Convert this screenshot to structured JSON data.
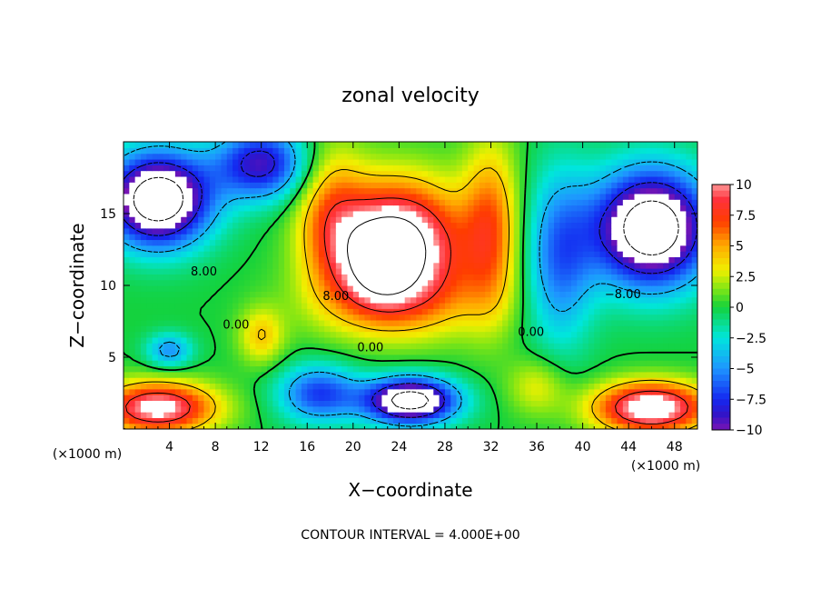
{
  "chart_data": {
    "type": "heatmap",
    "title": "zonal velocity",
    "xlabel": "X−coordinate",
    "ylabel": "Z−coordinate",
    "x_unit_left": "(×1000 m)",
    "x_unit_right": "(×1000 m)",
    "footer": "CONTOUR INTERVAL = 4.000E+00",
    "xlim": [
      0,
      50
    ],
    "ylim": [
      0,
      20
    ],
    "x_ticks": [
      4,
      8,
      12,
      16,
      20,
      24,
      28,
      32,
      36,
      40,
      44,
      48
    ],
    "x_tick_labels": [
      "4",
      "8",
      "12",
      "16",
      "20",
      "24",
      "28",
      "32",
      "36",
      "40",
      "44",
      "48"
    ],
    "y_ticks": [
      5,
      10,
      15
    ],
    "y_tick_labels": [
      "5",
      "10",
      "15"
    ],
    "colorbar": {
      "range": [
        -10,
        10
      ],
      "ticks": [
        10,
        7.5,
        5,
        2.5,
        0,
        -2.5,
        -5,
        -7.5,
        -10
      ],
      "tick_labels": [
        "10",
        "7.5",
        "5",
        "2.5",
        "0",
        "−2.5",
        "−5",
        "−7.5",
        "−10"
      ]
    },
    "contour_interval": 4,
    "contour_labels": [
      {
        "text": "8.00",
        "x": 7.0,
        "y": 10.7
      },
      {
        "text": "8.00",
        "x": 18.5,
        "y": 9.0
      },
      {
        "text": "0.00",
        "x": 9.8,
        "y": 7.0
      },
      {
        "text": "0.00",
        "x": 21.5,
        "y": 5.4
      },
      {
        "text": "0.00",
        "x": 35.5,
        "y": 6.5
      },
      {
        "text": "−8.00",
        "x": 43.5,
        "y": 9.1
      }
    ],
    "centers": [
      {
        "x": 24,
        "y": 13,
        "v": 13,
        "sx": 5.5,
        "sy": 4.2
      },
      {
        "x": 22,
        "y": 11.5,
        "v": 4,
        "sx": 3,
        "sy": 3
      },
      {
        "x": 32,
        "y": 14,
        "v": 6,
        "sx": 2.5,
        "sy": 6
      },
      {
        "x": 18,
        "y": 15,
        "v": 5,
        "sx": 3,
        "sy": 5
      },
      {
        "x": 3,
        "y": 16,
        "v": -15,
        "sx": 4.5,
        "sy": 3.2
      },
      {
        "x": 12,
        "y": 18.5,
        "v": -9,
        "sx": 4,
        "sy": 2.5
      },
      {
        "x": 46,
        "y": 14,
        "v": -15,
        "sx": 5,
        "sy": 4
      },
      {
        "x": 38,
        "y": 12,
        "v": -6,
        "sx": 3,
        "sy": 6
      },
      {
        "x": 3,
        "y": 1.5,
        "v": 11,
        "sx": 5,
        "sy": 1.8
      },
      {
        "x": 46,
        "y": 1.5,
        "v": 12,
        "sx": 5,
        "sy": 1.8
      },
      {
        "x": 25,
        "y": 2,
        "v": -14,
        "sx": 4,
        "sy": 1.6
      },
      {
        "x": 17,
        "y": 2.5,
        "v": -7,
        "sx": 3.5,
        "sy": 2
      },
      {
        "x": 4,
        "y": 5.5,
        "v": -5,
        "sx": 2,
        "sy": 1.2
      },
      {
        "x": 12,
        "y": 6.5,
        "v": 4,
        "sx": 2,
        "sy": 2
      },
      {
        "x": 36,
        "y": 3,
        "v": 3,
        "sx": 2.5,
        "sy": 2
      }
    ]
  }
}
